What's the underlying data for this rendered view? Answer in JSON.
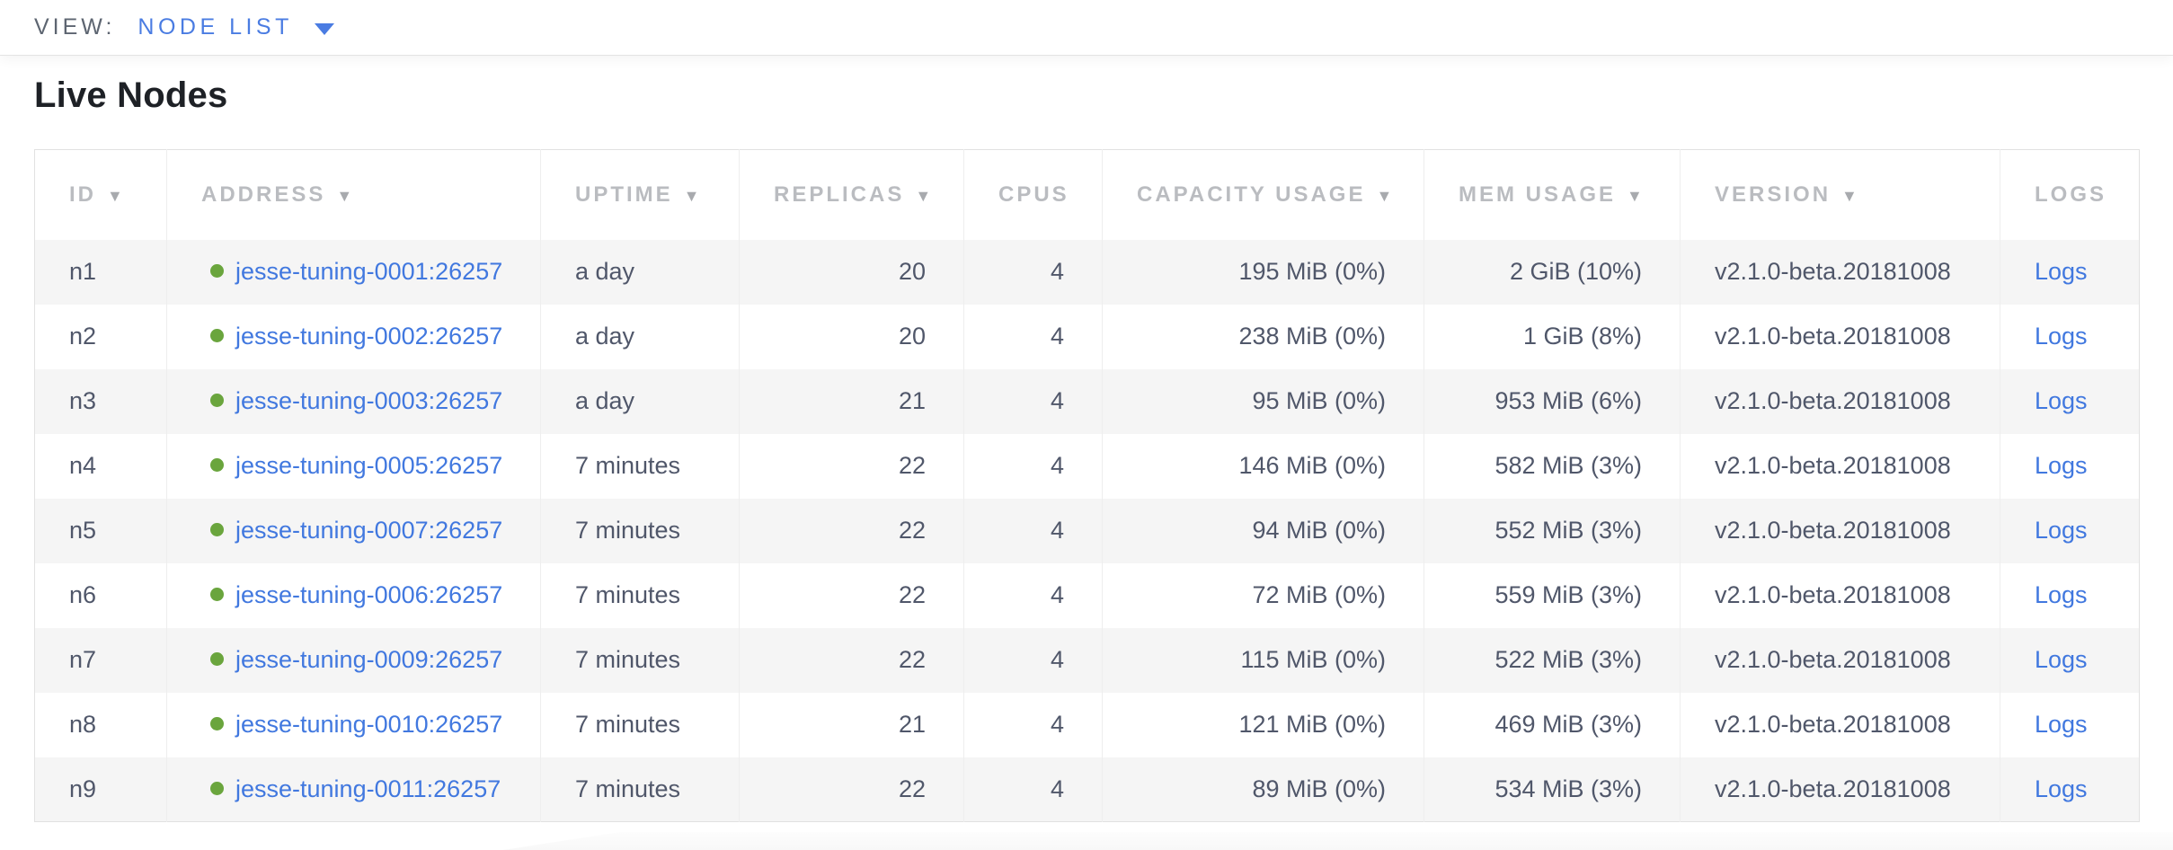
{
  "view_bar": {
    "label": "VIEW:",
    "selected": "NODE LIST"
  },
  "page": {
    "title": "Live Nodes"
  },
  "icons": {
    "sort_desc": "▼",
    "node_status_healthy": "green-dot"
  },
  "colors": {
    "accent_blue": "#4a7ce2",
    "link_blue": "#4178df",
    "healthy_green": "#6aa53d",
    "header_text_gray": "#babcc0",
    "cell_text": "#50576a",
    "row_stripe": "#f5f5f5"
  },
  "table": {
    "columns": [
      {
        "key": "id",
        "label": "ID",
        "sorted": true
      },
      {
        "key": "address",
        "label": "ADDRESS",
        "sorted": true
      },
      {
        "key": "uptime",
        "label": "UPTIME",
        "sorted": true
      },
      {
        "key": "replicas",
        "label": "REPLICAS",
        "sorted": true
      },
      {
        "key": "cpus",
        "label": "CPUS",
        "sorted": false
      },
      {
        "key": "capacity",
        "label": "CAPACITY USAGE",
        "sorted": true
      },
      {
        "key": "mem",
        "label": "MEM USAGE",
        "sorted": true
      },
      {
        "key": "version",
        "label": "VERSION",
        "sorted": true
      },
      {
        "key": "logs",
        "label": "LOGS",
        "sorted": false
      }
    ],
    "rows": [
      {
        "id": "n1",
        "address": "jesse-tuning-0001:26257",
        "uptime": "a day",
        "replicas": "20",
        "cpus": "4",
        "capacity": "195 MiB (0%)",
        "mem": "2 GiB (10%)",
        "version": "v2.1.0-beta.20181008",
        "logs": "Logs"
      },
      {
        "id": "n2",
        "address": "jesse-tuning-0002:26257",
        "uptime": "a day",
        "replicas": "20",
        "cpus": "4",
        "capacity": "238 MiB (0%)",
        "mem": "1 GiB (8%)",
        "version": "v2.1.0-beta.20181008",
        "logs": "Logs"
      },
      {
        "id": "n3",
        "address": "jesse-tuning-0003:26257",
        "uptime": "a day",
        "replicas": "21",
        "cpus": "4",
        "capacity": "95 MiB (0%)",
        "mem": "953 MiB (6%)",
        "version": "v2.1.0-beta.20181008",
        "logs": "Logs"
      },
      {
        "id": "n4",
        "address": "jesse-tuning-0005:26257",
        "uptime": "7 minutes",
        "replicas": "22",
        "cpus": "4",
        "capacity": "146 MiB (0%)",
        "mem": "582 MiB (3%)",
        "version": "v2.1.0-beta.20181008",
        "logs": "Logs"
      },
      {
        "id": "n5",
        "address": "jesse-tuning-0007:26257",
        "uptime": "7 minutes",
        "replicas": "22",
        "cpus": "4",
        "capacity": "94 MiB (0%)",
        "mem": "552 MiB (3%)",
        "version": "v2.1.0-beta.20181008",
        "logs": "Logs"
      },
      {
        "id": "n6",
        "address": "jesse-tuning-0006:26257",
        "uptime": "7 minutes",
        "replicas": "22",
        "cpus": "4",
        "capacity": "72 MiB (0%)",
        "mem": "559 MiB (3%)",
        "version": "v2.1.0-beta.20181008",
        "logs": "Logs"
      },
      {
        "id": "n7",
        "address": "jesse-tuning-0009:26257",
        "uptime": "7 minutes",
        "replicas": "22",
        "cpus": "4",
        "capacity": "115 MiB (0%)",
        "mem": "522 MiB (3%)",
        "version": "v2.1.0-beta.20181008",
        "logs": "Logs"
      },
      {
        "id": "n8",
        "address": "jesse-tuning-0010:26257",
        "uptime": "7 minutes",
        "replicas": "21",
        "cpus": "4",
        "capacity": "121 MiB (0%)",
        "mem": "469 MiB (3%)",
        "version": "v2.1.0-beta.20181008",
        "logs": "Logs"
      },
      {
        "id": "n9",
        "address": "jesse-tuning-0011:26257",
        "uptime": "7 minutes",
        "replicas": "22",
        "cpus": "4",
        "capacity": "89 MiB (0%)",
        "mem": "534 MiB (3%)",
        "version": "v2.1.0-beta.20181008",
        "logs": "Logs"
      }
    ]
  }
}
